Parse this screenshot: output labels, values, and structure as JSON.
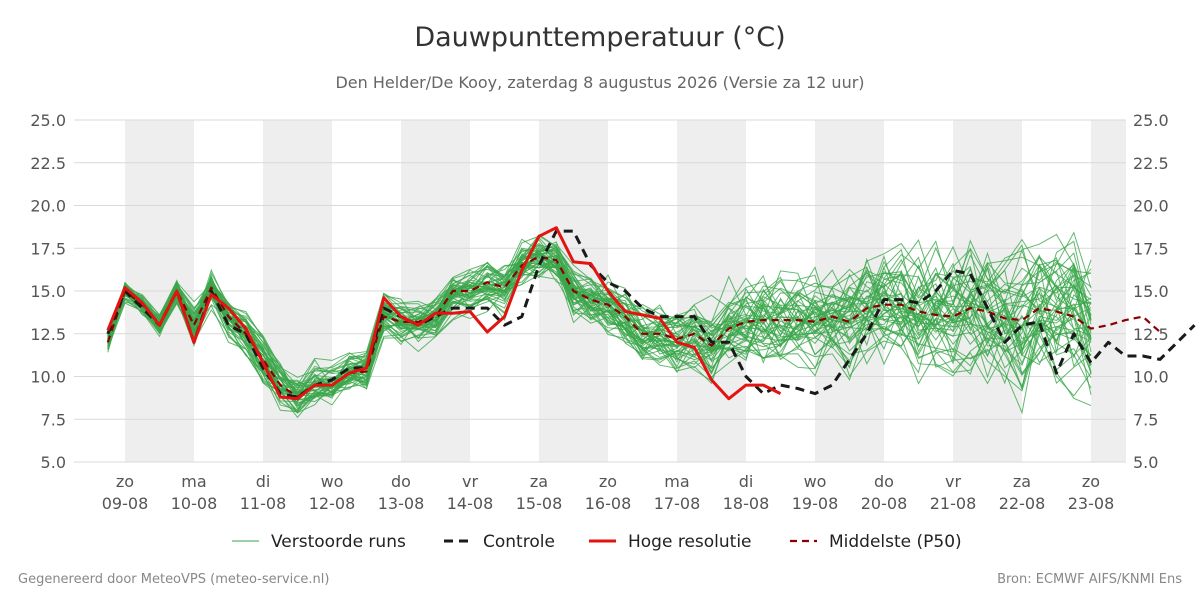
{
  "title": "Dauwpunttemperatuur (°C)",
  "subtitle": "Den Helder/De Kooy, zaterdag  8 augustus 2026 (Versie za 12 uur)",
  "footer": {
    "left": "Gegenereerd door MeteoVPS (meteo-service.nl)",
    "right": "Bron: ECMWF AIFS/KNMI Ens"
  },
  "colors": {
    "ensemble": "#3aa64a",
    "control": "#1a1a1a",
    "high_res": "#e3140f",
    "median": "#8b0000",
    "shade": "#eeeeee",
    "grid": "#d9d9d9"
  },
  "chart_data": {
    "type": "line",
    "title": "Dauwpunttemperatuur (°C)",
    "subtitle": "Den Helder/De Kooy, zaterdag  8 augustus 2026 (Versie za 12 uur)",
    "ylim": [
      5.0,
      25.0
    ],
    "yticks": [
      "5.0",
      "7.5",
      "10.0",
      "12.5",
      "15.0",
      "17.5",
      "20.0",
      "22.5",
      "25.0"
    ],
    "xlim": [
      -0.25,
      14.0
    ],
    "xticks": [
      {
        "day": "zo",
        "date": "09-08"
      },
      {
        "day": "ma",
        "date": "10-08"
      },
      {
        "day": "di",
        "date": "11-08"
      },
      {
        "day": "wo",
        "date": "12-08"
      },
      {
        "day": "do",
        "date": "13-08"
      },
      {
        "day": "vr",
        "date": "14-08"
      },
      {
        "day": "za",
        "date": "15-08"
      },
      {
        "day": "zo",
        "date": "16-08"
      },
      {
        "day": "ma",
        "date": "17-08"
      },
      {
        "day": "di",
        "date": "18-08"
      },
      {
        "day": "wo",
        "date": "19-08"
      },
      {
        "day": "do",
        "date": "20-08"
      },
      {
        "day": "vr",
        "date": "21-08"
      },
      {
        "day": "za",
        "date": "22-08"
      },
      {
        "day": "zo",
        "date": "23-08"
      }
    ],
    "shaded_days": [
      0,
      2,
      4,
      6,
      8,
      10,
      12,
      14
    ],
    "grid": true,
    "legend_position": "bottom",
    "legend": [
      "Verstoorde runs",
      "Controle",
      "Hoge resolutie",
      "Middelste (P50)"
    ],
    "x_step_days": 0.25,
    "x_start_day": -0.25,
    "series": [
      {
        "name": "Controle",
        "style": "dashed",
        "values": [
          12.5,
          15.0,
          14.0,
          13.0,
          15.0,
          12.0,
          15.0,
          13.0,
          12.5,
          10.5,
          9.0,
          8.8,
          9.5,
          9.8,
          10.5,
          10.5,
          14.0,
          13.5,
          13.0,
          13.5,
          14.0,
          14.0,
          14.0,
          13.0,
          13.5,
          16.5,
          18.5,
          18.5,
          16.5,
          15.5,
          15.0,
          14.0,
          13.5,
          13.5,
          13.5,
          12.0,
          12.0,
          10.0,
          9.0,
          9.5,
          9.3,
          9.0,
          9.5,
          11.0,
          12.5,
          14.5,
          14.5,
          14.3,
          15.0,
          16.2,
          16.0,
          14.0,
          12.0,
          13.0,
          13.2,
          10.2,
          12.5,
          10.8,
          12.0,
          11.2,
          11.2,
          11.0,
          12.0,
          13.0
        ]
      },
      {
        "name": "Hoge resolutie",
        "style": "solid",
        "values": [
          12.7,
          15.2,
          14.3,
          13.0,
          15.0,
          12.0,
          14.8,
          14.0,
          12.8,
          10.8,
          8.8,
          8.7,
          9.5,
          9.5,
          10.2,
          10.5,
          14.6,
          13.5,
          13.0,
          13.7,
          13.7,
          13.8,
          12.6,
          13.5,
          16.2,
          18.2,
          18.7,
          16.7,
          16.6,
          15.0,
          13.8,
          13.6,
          13.4,
          12.0,
          11.7,
          9.8,
          8.7,
          9.5,
          9.5,
          9.0
        ]
      },
      {
        "name": "Middelste (P50)",
        "style": "dashed",
        "values": [
          12.0,
          15.0,
          14.2,
          13.0,
          15.0,
          13.0,
          15.2,
          13.5,
          12.5,
          11.0,
          9.5,
          8.8,
          9.5,
          9.5,
          10.2,
          10.3,
          13.5,
          13.2,
          13.2,
          13.5,
          15.0,
          15.0,
          15.5,
          15.2,
          16.5,
          17.0,
          16.8,
          15.0,
          14.5,
          14.2,
          13.5,
          12.5,
          12.5,
          12.2,
          12.5,
          11.8,
          12.8,
          13.2,
          13.3,
          13.3,
          13.3,
          13.2,
          13.5,
          13.2,
          14.0,
          14.2,
          14.2,
          13.8,
          13.6,
          13.5,
          14.0,
          13.8,
          13.4,
          13.3,
          14.0,
          13.8,
          13.5,
          12.8,
          13.0,
          13.3,
          13.5,
          12.6
        ]
      }
    ]
  }
}
